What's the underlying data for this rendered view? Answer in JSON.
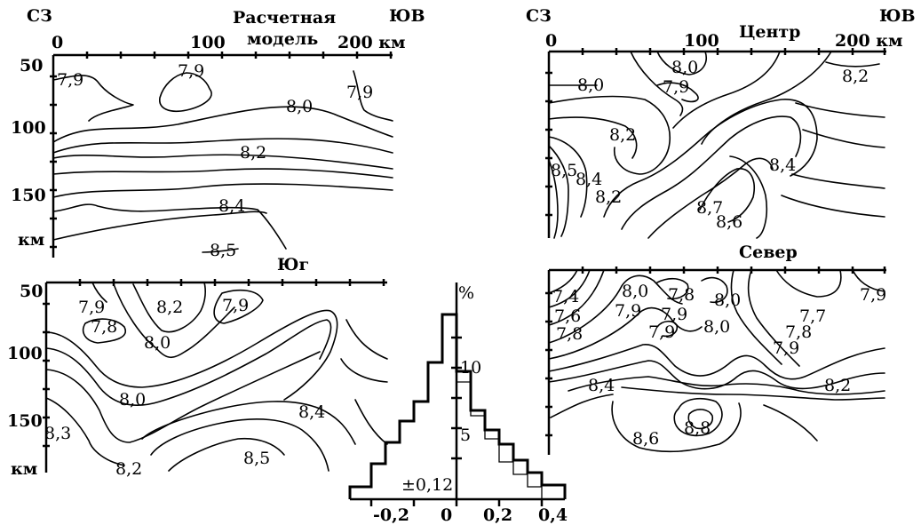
{
  "compass": {
    "nw": "СЗ",
    "se": "ЮВ"
  },
  "panels": {
    "model": {
      "title_line1": "Расчетная",
      "title_line2": "модель",
      "x_ticks": [
        "0",
        "100",
        "200 км"
      ],
      "y_ticks": [
        "50",
        "100",
        "150",
        "км"
      ],
      "contour_labels": [
        "7,9",
        "7,9",
        "8,0",
        "7,9",
        "8,2",
        "8,4",
        "8,5"
      ]
    },
    "south": {
      "title": "Юг",
      "y_ticks": [
        "50",
        "100",
        "150",
        "км"
      ],
      "contour_labels": [
        "7,9",
        "8,2",
        "7,9",
        "7,8",
        "8,0",
        "8,0",
        "8,4",
        "8,3",
        "8,5",
        "8,2"
      ]
    },
    "center": {
      "title": "Центр",
      "x_ticks": [
        "0",
        "100",
        "200 км"
      ],
      "contour_labels": [
        "8,0",
        "8,0",
        "7,9",
        "8,2",
        "8,2",
        "8,4",
        "8,5",
        "8,4",
        "8,2",
        "8,7",
        "8,6"
      ]
    },
    "north": {
      "title": "Север",
      "contour_labels": [
        "7,4",
        "8,0",
        "7,8",
        "8,0",
        "7,9",
        "7,6",
        "7,9",
        "7,9",
        "7,7",
        "7,8",
        "7,9",
        "8,0",
        "7,8",
        "7,9",
        "8,4",
        "8,2",
        "8,8",
        "8,6"
      ]
    }
  },
  "histogram": {
    "y_unit": "%",
    "y_ticks": [
      "10",
      "5"
    ],
    "x_ticks": [
      "-0,2",
      "0",
      "0,2",
      "0,4"
    ],
    "annotation": "±0,12"
  }
}
